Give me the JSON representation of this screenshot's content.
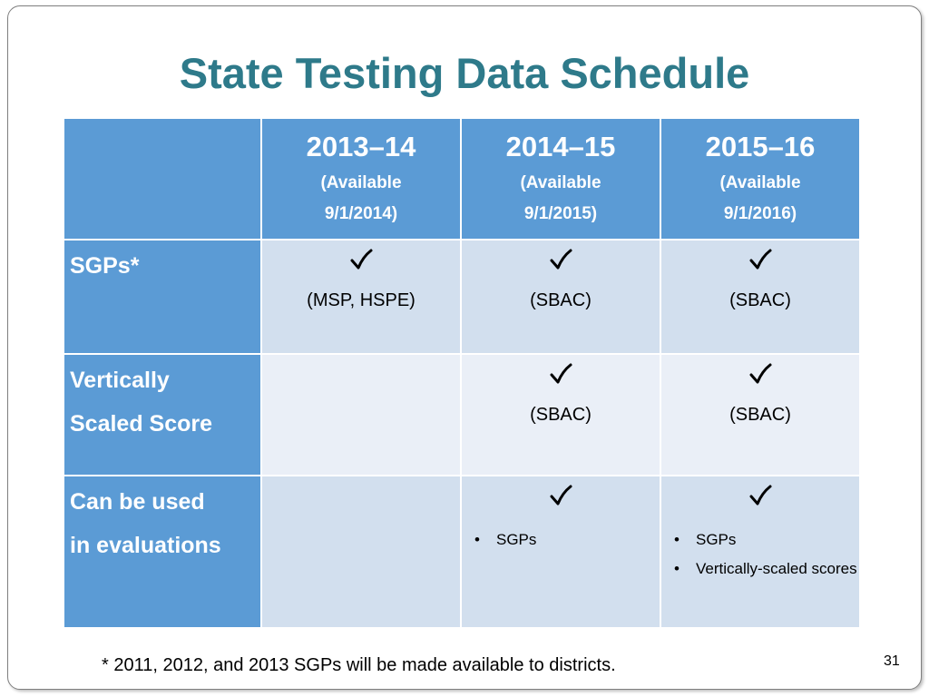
{
  "title": "State Testing Data Schedule",
  "table": {
    "columns": [
      {
        "year": "2013–14",
        "available_line1": "(Available",
        "available_line2": "9/1/2014)"
      },
      {
        "year": "2014–15",
        "available_line1": "(Available",
        "available_line2": "9/1/2015)"
      },
      {
        "year": "2015–16",
        "available_line1": "(Available",
        "available_line2": "9/1/2016)"
      }
    ],
    "rows": [
      {
        "label": "SGPs*",
        "cells": [
          {
            "check": true,
            "text": "(MSP, HSPE)"
          },
          {
            "check": true,
            "text": "(SBAC)"
          },
          {
            "check": true,
            "text": "(SBAC)"
          }
        ]
      },
      {
        "label_line1": "Vertically",
        "label_line2": "Scaled Score",
        "cells": [
          {
            "check": false,
            "text": ""
          },
          {
            "check": true,
            "text": "(SBAC)"
          },
          {
            "check": true,
            "text": "(SBAC)"
          }
        ]
      },
      {
        "label_line1": "Can be used",
        "label_line2": "in evaluations",
        "cells": [
          {
            "check": false,
            "bullets": []
          },
          {
            "check": true,
            "bullets": [
              "SGPs"
            ]
          },
          {
            "check": true,
            "bullets": [
              "SGPs",
              "Vertically-scaled scores"
            ]
          }
        ]
      }
    ]
  },
  "bullet_symbol": "•",
  "footnote": "* 2011, 2012, and 2013 SGPs will be made available to districts.",
  "page_number": "31",
  "colors": {
    "title": "#2e7a8a",
    "header_bg": "#5b9bd5",
    "cell_dark": "#d2dfee",
    "cell_light": "#eaeff7"
  },
  "icons": {
    "check": "check-icon"
  }
}
